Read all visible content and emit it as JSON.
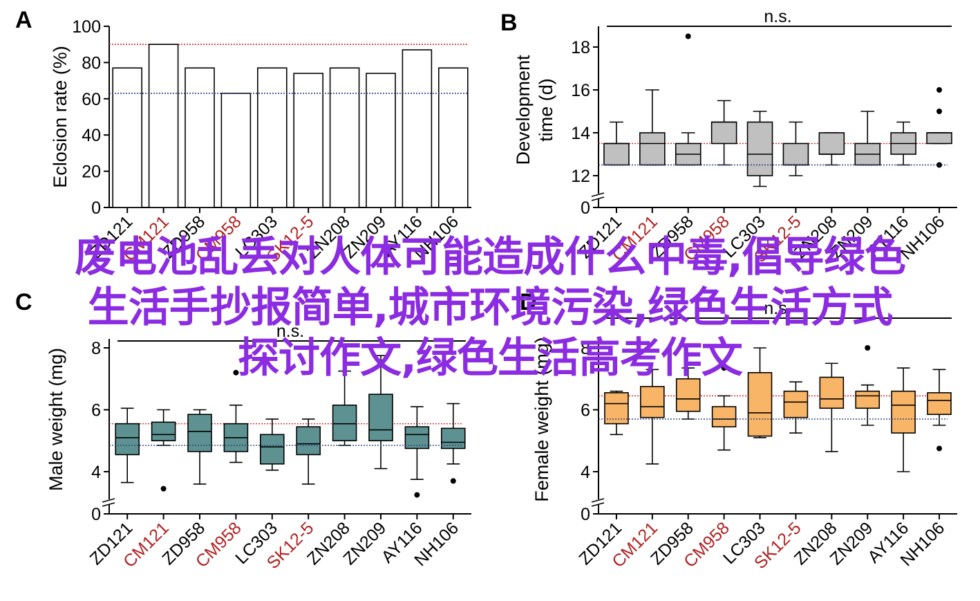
{
  "colors": {
    "ref_high": "#d62728",
    "ref_low": "#2a3f7a",
    "label_red": "#b22222",
    "male_box": "#5e9292",
    "female_box": "#f8b567",
    "dev_box": "#c0c0c0",
    "eclosion_bar": "#ffffff",
    "overlay_text": "#8b2be2"
  },
  "overlay": {
    "lines": [
      "废电池乱丢对人体可能造成什么中毒,倡导绿色",
      "生活手抄报简单,城市环境污染,绿色生活方式",
      "探讨作文,绿色生活高考作文"
    ]
  },
  "chart_data": [
    {
      "panel": "A",
      "type": "bar",
      "title": "",
      "ylabel": "Eclosion rate (%)",
      "xlabel": "",
      "categories": [
        "ZD121",
        "CM121",
        "ZD958",
        "CM958",
        "LC303",
        "SK12-5",
        "ZN208",
        "ZN209",
        "AY116",
        "NH106"
      ],
      "red_categories": [
        "CM121",
        "CM958",
        "SK12-5"
      ],
      "values": [
        77,
        90,
        77,
        63,
        77,
        74,
        77,
        74,
        87,
        77
      ],
      "ylim": [
        0,
        100
      ],
      "yticks": [
        0,
        20,
        40,
        60,
        80,
        100
      ],
      "ref_lines": {
        "high": 90,
        "low": 63
      },
      "significance": ""
    },
    {
      "panel": "B",
      "type": "box",
      "title": "",
      "ylabel": [
        "Development",
        "time (d)"
      ],
      "xlabel": "",
      "categories": [
        "ZD121",
        "CM121",
        "ZD958",
        "CM958",
        "LC303",
        "SK12-5",
        "ZN208",
        "ZN209",
        "AY116",
        "NH106"
      ],
      "red_categories": [
        "CM121",
        "CM958",
        "SK12-5"
      ],
      "ylim": [
        11,
        19
      ],
      "yticks": [
        12,
        14,
        16,
        18
      ],
      "zero_tick": "0",
      "axis_break": true,
      "ref_lines": {
        "high": 13.5,
        "low": 12.5
      },
      "significance": "n.s.",
      "boxes": [
        {
          "whisker_low": 12.5,
          "q1": 12.5,
          "median": 13.5,
          "q3": 13.5,
          "whisker_high": 14.5,
          "outliers": []
        },
        {
          "whisker_low": 12.5,
          "q1": 12.5,
          "median": 13.5,
          "q3": 14.0,
          "whisker_high": 16.0,
          "outliers": []
        },
        {
          "whisker_low": 12.5,
          "q1": 12.5,
          "median": 13.0,
          "q3": 13.5,
          "whisker_high": 14.0,
          "outliers": [
            18.5
          ]
        },
        {
          "whisker_low": 12.5,
          "q1": 13.5,
          "median": 14.5,
          "q3": 14.5,
          "whisker_high": 15.5,
          "outliers": []
        },
        {
          "whisker_low": 11.5,
          "q1": 12.0,
          "median": 13.0,
          "q3": 14.5,
          "whisker_high": 15.0,
          "outliers": []
        },
        {
          "whisker_low": 12.0,
          "q1": 12.5,
          "median": 12.5,
          "q3": 13.5,
          "whisker_high": 14.5,
          "outliers": []
        },
        {
          "whisker_low": 12.5,
          "q1": 13.0,
          "median": 13.0,
          "q3": 14.0,
          "whisker_high": 14.0,
          "outliers": []
        },
        {
          "whisker_low": 12.5,
          "q1": 12.5,
          "median": 13.0,
          "q3": 13.5,
          "whisker_high": 15.0,
          "outliers": []
        },
        {
          "whisker_low": 12.5,
          "q1": 13.0,
          "median": 13.5,
          "q3": 14.0,
          "whisker_high": 14.5,
          "outliers": []
        },
        {
          "whisker_low": 13.5,
          "q1": 13.5,
          "median": 14.0,
          "q3": 14.0,
          "whisker_high": 14.0,
          "outliers": [
            16.0,
            15.0,
            12.5
          ]
        }
      ]
    },
    {
      "panel": "C",
      "type": "box",
      "title": "",
      "ylabel": "Male weight (mg)",
      "xlabel": "",
      "categories": [
        "ZD121",
        "CM121",
        "ZD958",
        "CM958",
        "LC303",
        "SK12-5",
        "ZN208",
        "ZN209",
        "AY116",
        "NH106"
      ],
      "red_categories": [
        "CM121",
        "CM958",
        "SK12-5"
      ],
      "ylim": [
        3.2,
        8.5
      ],
      "yticks": [
        4,
        6,
        8
      ],
      "zero_tick": "0",
      "axis_break": true,
      "ref_lines": {
        "high": 5.55,
        "low": 4.85
      },
      "significance": "n.s.",
      "boxes": [
        {
          "whisker_low": 3.65,
          "q1": 4.55,
          "median": 5.1,
          "q3": 5.55,
          "whisker_high": 6.05,
          "outliers": []
        },
        {
          "whisker_low": 4.85,
          "q1": 5.0,
          "median": 5.2,
          "q3": 5.6,
          "whisker_high": 6.0,
          "outliers": [
            3.45
          ]
        },
        {
          "whisker_low": 3.6,
          "q1": 4.65,
          "median": 5.3,
          "q3": 5.85,
          "whisker_high": 6.0,
          "outliers": []
        },
        {
          "whisker_low": 4.3,
          "q1": 4.65,
          "median": 5.1,
          "q3": 5.55,
          "whisker_high": 6.15,
          "outliers": [
            7.2
          ]
        },
        {
          "whisker_low": 4.05,
          "q1": 4.25,
          "median": 4.8,
          "q3": 5.2,
          "whisker_high": 5.7,
          "outliers": []
        },
        {
          "whisker_low": 3.6,
          "q1": 4.55,
          "median": 4.9,
          "q3": 5.45,
          "whisker_high": 5.7,
          "outliers": []
        },
        {
          "whisker_low": 4.85,
          "q1": 5.0,
          "median": 5.55,
          "q3": 6.15,
          "whisker_high": 7.25,
          "outliers": []
        },
        {
          "whisker_low": 4.1,
          "q1": 5.0,
          "median": 5.35,
          "q3": 6.5,
          "whisker_high": 7.75,
          "outliers": []
        },
        {
          "whisker_low": 3.75,
          "q1": 4.75,
          "median": 5.2,
          "q3": 5.45,
          "whisker_high": 6.1,
          "outliers": [
            3.25
          ]
        },
        {
          "whisker_low": 4.25,
          "q1": 4.75,
          "median": 4.95,
          "q3": 5.4,
          "whisker_high": 6.2,
          "outliers": [
            3.7
          ]
        }
      ]
    },
    {
      "panel": "D",
      "type": "box",
      "title": "",
      "ylabel": "Female weight (mg)",
      "xlabel": "",
      "categories": [
        "ZD121",
        "CM121",
        "ZD958",
        "CM958",
        "LC303",
        "SK12-5",
        "ZN208",
        "ZN209",
        "AY116",
        "NH106"
      ],
      "red_categories": [
        "CM121",
        "CM958",
        "SK12-5"
      ],
      "ylim": [
        3.2,
        8.5
      ],
      "yticks": [
        4,
        6,
        8
      ],
      "zero_tick": "0",
      "axis_break": true,
      "ref_lines": {
        "high": 6.45,
        "low": 5.7
      },
      "significance": "n.s.",
      "boxes": [
        {
          "whisker_low": 5.2,
          "q1": 5.55,
          "median": 6.2,
          "q3": 6.55,
          "whisker_high": 6.6,
          "outliers": []
        },
        {
          "whisker_low": 4.25,
          "q1": 5.75,
          "median": 6.1,
          "q3": 6.75,
          "whisker_high": 7.3,
          "outliers": []
        },
        {
          "whisker_low": 5.7,
          "q1": 5.95,
          "median": 6.35,
          "q3": 7.0,
          "whisker_high": 7.35,
          "outliers": []
        },
        {
          "whisker_low": 4.7,
          "q1": 5.45,
          "median": 5.7,
          "q3": 6.1,
          "whisker_high": 6.45,
          "outliers": [
            7.35
          ]
        },
        {
          "whisker_low": 5.1,
          "q1": 5.15,
          "median": 5.9,
          "q3": 7.2,
          "whisker_high": 8.0,
          "outliers": []
        },
        {
          "whisker_low": 5.25,
          "q1": 5.75,
          "median": 6.25,
          "q3": 6.6,
          "whisker_high": 6.9,
          "outliers": []
        },
        {
          "whisker_low": 4.65,
          "q1": 6.05,
          "median": 6.35,
          "q3": 7.05,
          "whisker_high": 7.5,
          "outliers": []
        },
        {
          "whisker_low": 5.5,
          "q1": 6.05,
          "median": 6.45,
          "q3": 6.6,
          "whisker_high": 6.8,
          "outliers": [
            8.0
          ]
        },
        {
          "whisker_low": 4.0,
          "q1": 5.25,
          "median": 6.15,
          "q3": 6.6,
          "whisker_high": 7.35,
          "outliers": []
        },
        {
          "whisker_low": 5.5,
          "q1": 5.85,
          "median": 6.3,
          "q3": 6.55,
          "whisker_high": 7.3,
          "outliers": [
            4.75
          ]
        }
      ]
    }
  ]
}
